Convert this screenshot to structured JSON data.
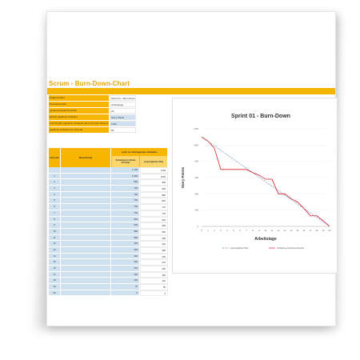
{
  "page": {
    "title": "Scrum - Burn-Down-Chart"
  },
  "info": [
    {
      "label": "Diagrammtitel",
      "value": "Sprint 01 - Burn-Down"
    },
    {
      "label": "Periodeneinheit",
      "value": "Arbeitstage"
    },
    {
      "label": "gesamte Anzahl Perioden",
      "value": "20"
    },
    {
      "label": "Einheit geplanter Aufwand",
      "value": "Story Points"
    },
    {
      "label": "ursprünglich geplanter Aufwand (ohne Periode Wissen)",
      "value": "1100"
    },
    {
      "label": "geplanter Aufwand pro Periode",
      "value": "55"
    }
  ],
  "table": {
    "header_period": "Periode",
    "header_desc": "Bemerkung",
    "header_group": "noch zu erbringender Aufwand",
    "header_actual": "Schätzung Ist (Ende Periode)",
    "header_plan": "ursprünglicher Plan",
    "rows": [
      {
        "p": "",
        "a": "1.100",
        "e": "1100"
      },
      {
        "p": "1",
        "a": "1.050",
        "e": "1045"
      },
      {
        "p": "2",
        "a": "960",
        "e": "990"
      },
      {
        "p": "3",
        "a": "700",
        "e": "935"
      },
      {
        "p": "4",
        "a": "700",
        "e": "880"
      },
      {
        "p": "5",
        "a": "700",
        "e": "825"
      },
      {
        "p": "6",
        "a": "700",
        "e": "770"
      },
      {
        "p": "7",
        "a": "700",
        "e": "715"
      },
      {
        "p": "8",
        "a": "660",
        "e": "660"
      },
      {
        "p": "9",
        "a": "630",
        "e": "605"
      },
      {
        "p": "10",
        "a": "580",
        "e": "550"
      },
      {
        "p": "11",
        "a": "580",
        "e": "495"
      },
      {
        "p": "12",
        "a": "400",
        "e": "440"
      },
      {
        "p": "13",
        "a": "400",
        "e": "385"
      },
      {
        "p": "14",
        "a": "340",
        "e": "330"
      },
      {
        "p": "15",
        "a": "300",
        "e": "275"
      },
      {
        "p": "16",
        "a": "220",
        "e": "220"
      },
      {
        "p": "17",
        "a": "130",
        "e": "165"
      },
      {
        "p": "18",
        "a": "130",
        "e": "110"
      },
      {
        "p": "19",
        "a": "70",
        "e": "55"
      },
      {
        "p": "20",
        "a": "0",
        "e": "0"
      }
    ]
  },
  "colors": {
    "accent": "#f5b400",
    "blue_cell": "#cfe0f1",
    "actual_line": "#d61f2a",
    "plan_line": "#4f81bd"
  },
  "chart_data": {
    "type": "line",
    "title": "Sprint 01 - Burn-Down",
    "xlabel": "Arbeitstage",
    "ylabel": "Story Points",
    "x": [
      0,
      1,
      2,
      3,
      4,
      5,
      6,
      7,
      8,
      9,
      10,
      11,
      12,
      13,
      14,
      15,
      16,
      17,
      18,
      19,
      20
    ],
    "ylim": [
      0,
      1200
    ],
    "yticks": [
      0,
      200,
      400,
      600,
      800,
      1000,
      1200
    ],
    "series": [
      {
        "name": "ursprünglicher Plan",
        "style": "dashed",
        "color": "#4f81bd",
        "values": [
          1100,
          1045,
          990,
          935,
          880,
          825,
          770,
          715,
          660,
          605,
          550,
          495,
          440,
          385,
          330,
          275,
          220,
          165,
          110,
          55,
          0
        ]
      },
      {
        "name": "Schätzung Ist (Ende Periode)",
        "style": "solid",
        "color": "#d61f2a",
        "values": [
          1100,
          1050,
          960,
          700,
          700,
          700,
          700,
          700,
          660,
          630,
          580,
          580,
          400,
          400,
          340,
          300,
          220,
          130,
          130,
          70,
          0
        ]
      }
    ],
    "legend_position": "bottom"
  }
}
